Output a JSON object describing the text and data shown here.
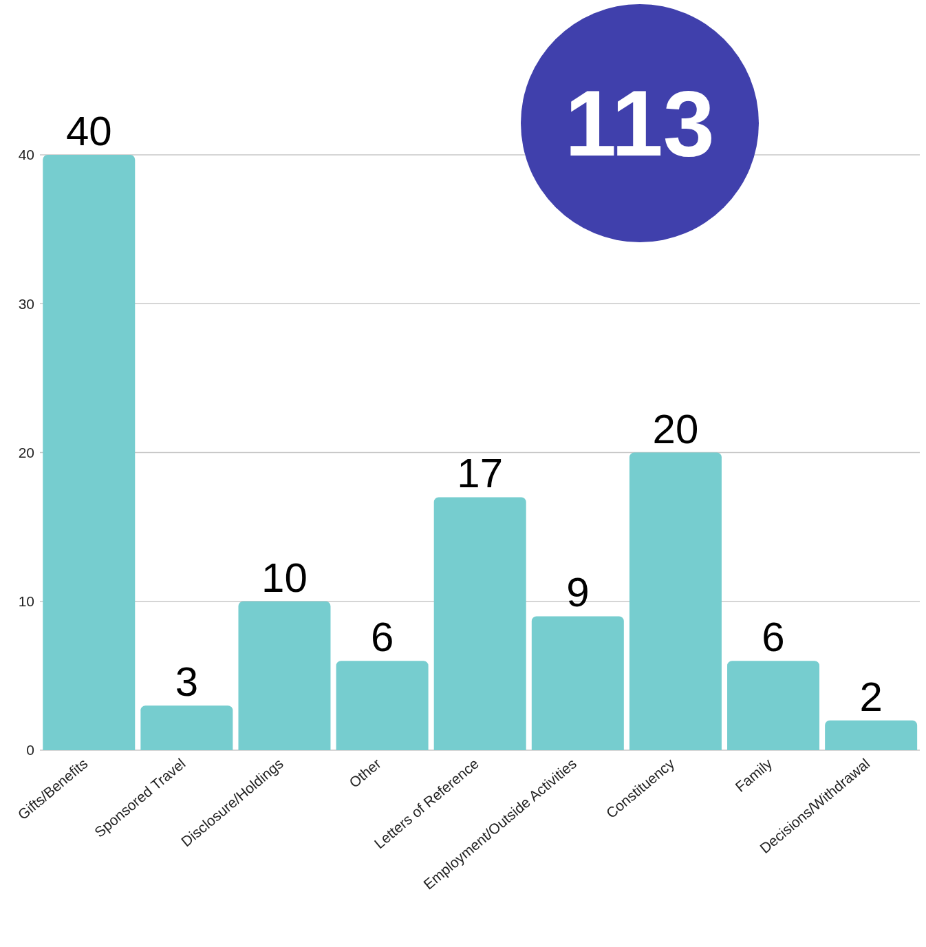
{
  "chart_data": {
    "type": "bar",
    "categories": [
      "Gifts/Benefits",
      "Sponsored Travel",
      "Disclosure/Holdings",
      "Other",
      "Letters of Reference",
      "Employment/Outside Activities",
      "Constituency",
      "Family",
      "Decisions/Withdrawal"
    ],
    "values": [
      40,
      3,
      10,
      6,
      17,
      9,
      20,
      6,
      2
    ],
    "color": "#76cdcf",
    "ylim": [
      0,
      40
    ],
    "yticks": [
      0,
      10,
      20,
      30,
      40
    ],
    "grid": "y",
    "data_labels": true,
    "annotations": [
      "113"
    ]
  }
}
